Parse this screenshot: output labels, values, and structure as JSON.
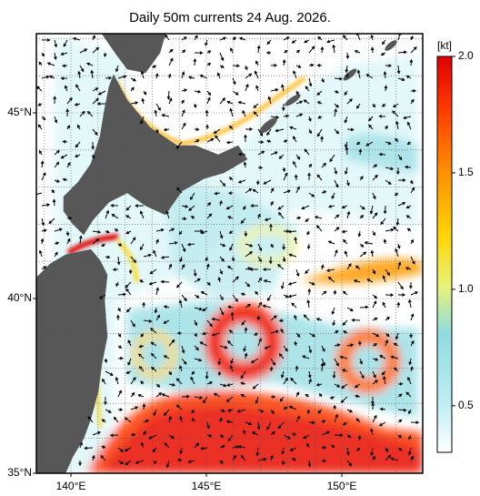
{
  "title": "Daily 50m currents 24 Aug. 2026.",
  "map": {
    "lat_labels": [
      {
        "value": 45,
        "label": "45°N"
      },
      {
        "value": 40,
        "label": "40°N"
      },
      {
        "value": 35,
        "label": "35°N"
      }
    ],
    "lon_labels": [
      {
        "value": 140,
        "label": "140°E"
      },
      {
        "value": 145,
        "label": "145°E"
      },
      {
        "value": 150,
        "label": "150°E"
      }
    ]
  },
  "colorbar": {
    "unit": "[kt]",
    "lim": [
      0.3,
      2.0
    ],
    "ticks": [
      {
        "value": 2,
        "label": "2.0"
      },
      {
        "value": 1.5,
        "label": "1.5"
      },
      {
        "value": 1,
        "label": "1.0"
      },
      0.5
    ]
  }
}
